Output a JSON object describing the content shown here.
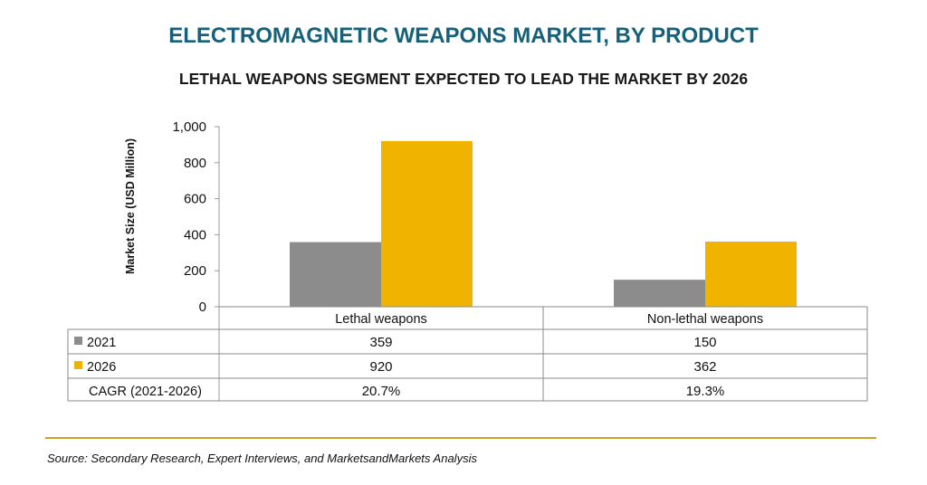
{
  "title": "ELECTROMAGNETIC WEAPONS MARKET, BY PRODUCT",
  "subtitle": "LETHAL WEAPONS SEGMENT EXPECTED TO LEAD THE MARKET BY 2026",
  "source": "Source: Secondary Research, Expert Interviews, and MarketsandMarkets Analysis",
  "colors": {
    "title": "#17607a",
    "s2021": "#8c8c8c",
    "s2026": "#f0b400",
    "rule": "#c9a227"
  },
  "chart_data": {
    "type": "bar",
    "title": "ELECTROMAGNETIC WEAPONS MARKET, BY PRODUCT",
    "subtitle": "LETHAL WEAPONS SEGMENT EXPECTED TO LEAD THE MARKET BY 2026",
    "ylabel": "Market Size (USD Million)",
    "ylim": [
      0,
      1000
    ],
    "yticks": [
      0,
      200,
      400,
      600,
      800,
      1000
    ],
    "ytick_labels": [
      "0",
      "200",
      "400",
      "600",
      "800",
      "1,000"
    ],
    "categories": [
      "Lethal weapons",
      "Non-lethal weapons"
    ],
    "series": [
      {
        "name": "2021",
        "values": [
          359,
          150
        ]
      },
      {
        "name": "2026",
        "values": [
          920,
          362
        ]
      }
    ],
    "table": {
      "rows": [
        {
          "label": "2021",
          "cells": [
            "359",
            "150"
          ]
        },
        {
          "label": "2026",
          "cells": [
            "920",
            "362"
          ]
        },
        {
          "label": "CAGR (2021-2026)",
          "cells": [
            "20.7%",
            "19.3%"
          ]
        }
      ]
    },
    "grid": false
  }
}
